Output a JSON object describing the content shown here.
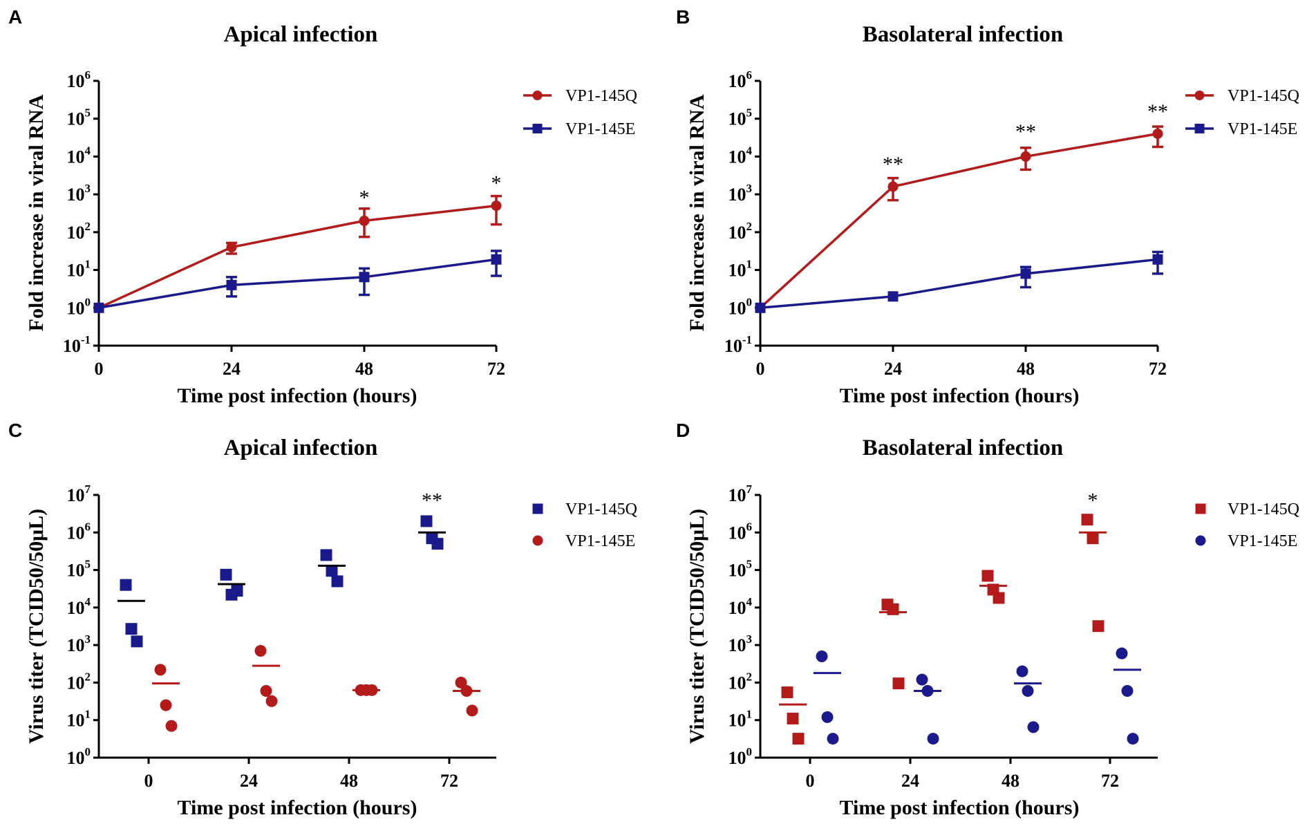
{
  "chart_data": [
    {
      "panel": "A",
      "type": "line",
      "title": "Apical infection",
      "xlabel": "Time post infection (hours)",
      "ylabel": "Fold increase in viral RNA",
      "x": [
        0,
        24,
        48,
        72
      ],
      "x_ticks": [
        "0",
        "24",
        "48",
        "72"
      ],
      "y_scale": "log",
      "ylim_exp": [
        -1,
        6
      ],
      "y_tick_base": "10",
      "y_tick_exponents": [
        "-1",
        "0",
        "1",
        "2",
        "3",
        "4",
        "5",
        "6"
      ],
      "legend_position": "top-right",
      "series": [
        {
          "name": "VP1-145Q",
          "color": "#b31b1b",
          "marker": "circle",
          "values": [
            1,
            40,
            200,
            500
          ],
          "err_low": [
            1,
            27,
            75,
            160
          ],
          "err_high": [
            1,
            52,
            420,
            900
          ]
        },
        {
          "name": "VP1-145E",
          "color": "#1a1a8c",
          "marker": "square",
          "values": [
            1,
            4,
            6.5,
            19
          ],
          "err_low": [
            1,
            2,
            2.2,
            7
          ],
          "err_high": [
            1,
            6.5,
            11,
            32
          ]
        }
      ],
      "annotations": [
        {
          "x": 48,
          "y": 900,
          "text": "*"
        },
        {
          "x": 72,
          "y": 2200,
          "text": "*"
        }
      ]
    },
    {
      "panel": "B",
      "type": "line",
      "title": "Basolateral infection",
      "xlabel": "Time post infection (hours)",
      "ylabel": "Fold increase in viral RNA",
      "x": [
        0,
        24,
        48,
        72
      ],
      "x_ticks": [
        "0",
        "24",
        "48",
        "72"
      ],
      "y_scale": "log",
      "ylim_exp": [
        -1,
        6
      ],
      "y_tick_base": "10",
      "y_tick_exponents": [
        "-1",
        "0",
        "1",
        "2",
        "3",
        "4",
        "5",
        "6"
      ],
      "legend_position": "top-right",
      "series": [
        {
          "name": "VP1-145Q",
          "color": "#b31b1b",
          "marker": "circle",
          "values": [
            1,
            1600,
            10000,
            40000
          ],
          "err_low": [
            1,
            700,
            4500,
            18000
          ],
          "err_high": [
            1,
            2700,
            17000,
            62000
          ]
        },
        {
          "name": "VP1-145E",
          "color": "#1a1a8c",
          "marker": "square",
          "values": [
            1,
            2,
            8,
            19
          ],
          "err_low": [
            1,
            2,
            3.5,
            8
          ],
          "err_high": [
            1,
            2,
            12,
            30
          ]
        }
      ],
      "annotations": [
        {
          "x": 24,
          "y": 7000,
          "text": "**"
        },
        {
          "x": 48,
          "y": 50000,
          "text": "**"
        },
        {
          "x": 72,
          "y": 170000,
          "text": "**"
        }
      ]
    },
    {
      "panel": "C",
      "type": "scatter",
      "title": "Apical infection",
      "xlabel": "Time post infection (hours)",
      "ylabel": "Virus titer (TCID50/50μL)",
      "x_ticks": [
        "0",
        "24",
        "48",
        "72"
      ],
      "y_scale": "log",
      "ylim_exp": [
        0,
        7
      ],
      "y_tick_base": "10",
      "y_tick_exponents": [
        "0",
        "1",
        "2",
        "3",
        "4",
        "5",
        "6",
        "7"
      ],
      "legend_position": "top-right",
      "series": [
        {
          "name": "VP1-145Q",
          "color": "#1a1a8c",
          "marker": "square",
          "groups": [
            {
              "x": 0,
              "points": [
                40000,
                2700,
                1250
              ],
              "mean": 15000
            },
            {
              "x": 24,
              "points": [
                75000,
                22000,
                28000
              ],
              "mean": 42000
            },
            {
              "x": 48,
              "points": [
                250000,
                95000,
                50000
              ],
              "mean": 130000
            },
            {
              "x": 72,
              "points": [
                2000000,
                700000,
                500000
              ],
              "mean": 1000000
            }
          ]
        },
        {
          "name": "VP1-145E",
          "color": "#b31b1b",
          "marker": "circle",
          "groups": [
            {
              "x": 0,
              "points": [
                220,
                25,
                7
              ],
              "mean": 95
            },
            {
              "x": 24,
              "points": [
                700,
                60,
                32
              ],
              "mean": 280
            },
            {
              "x": 48,
              "points": [
                63,
                63,
                63
              ],
              "mean": 63
            },
            {
              "x": 72,
              "points": [
                100,
                60,
                18
              ],
              "mean": 60
            }
          ]
        }
      ],
      "annotations": [
        {
          "x": 72,
          "y": 8000000,
          "text": "**"
        }
      ]
    },
    {
      "panel": "D",
      "type": "scatter",
      "title": "Basolateral infection",
      "xlabel": "Time post infection (hours)",
      "ylabel": "Virus titer (TCID50/50μL)",
      "x_ticks": [
        "0",
        "24",
        "48",
        "72"
      ],
      "y_scale": "log",
      "ylim_exp": [
        0,
        7
      ],
      "y_tick_base": "10",
      "y_tick_exponents": [
        "0",
        "1",
        "2",
        "3",
        "4",
        "5",
        "6",
        "7"
      ],
      "legend_position": "top-right",
      "series": [
        {
          "name": "VP1-145Q",
          "color": "#b31b1b",
          "marker": "square",
          "groups": [
            {
              "x": 0,
              "points": [
                55,
                11,
                3.2
              ],
              "mean": 26
            },
            {
              "x": 24,
              "points": [
                12000,
                9000,
                95
              ],
              "mean": 7500
            },
            {
              "x": 48,
              "points": [
                70000,
                30000,
                18000
              ],
              "mean": 38000
            },
            {
              "x": 72,
              "points": [
                2200000,
                700000,
                3200
              ],
              "mean": 1000000
            }
          ]
        },
        {
          "name": "VP1-145E",
          "color": "#1a1a8c",
          "marker": "circle",
          "groups": [
            {
              "x": 0,
              "points": [
                500,
                12,
                3.2
              ],
              "mean": 180
            },
            {
              "x": 24,
              "points": [
                120,
                60,
                3.2
              ],
              "mean": 60
            },
            {
              "x": 48,
              "points": [
                200,
                60,
                6.5
              ],
              "mean": 95
            },
            {
              "x": 72,
              "points": [
                600,
                60,
                3.2
              ],
              "mean": 220
            }
          ]
        }
      ],
      "annotations": [
        {
          "x": 72,
          "y": 8000000,
          "text": "*"
        }
      ]
    }
  ]
}
